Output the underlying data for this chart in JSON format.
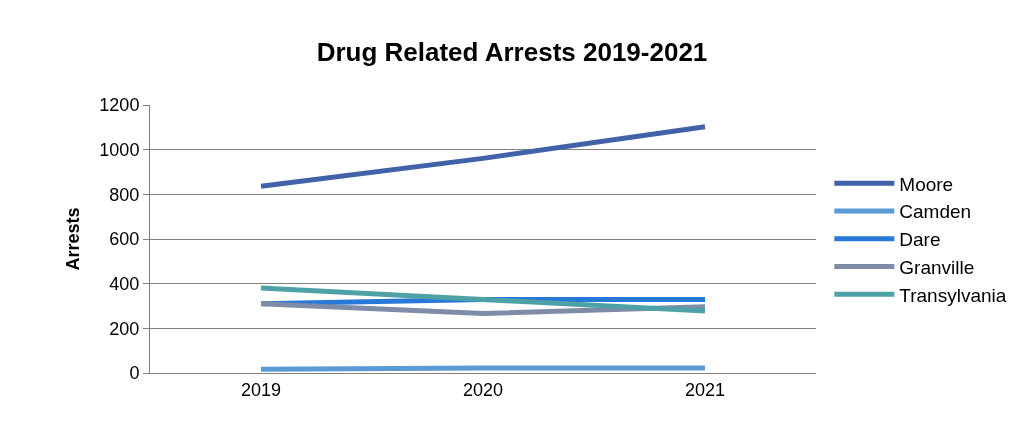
{
  "chart_data": {
    "type": "line",
    "title": "Drug Related Arrests 2019-2021",
    "ylabel": "Arrests",
    "categories": [
      "2019",
      "2020",
      "2021"
    ],
    "series": [
      {
        "name": "Moore",
        "color": "#4161a9",
        "values": [
          836,
          961,
          1103
        ]
      },
      {
        "name": "Camden",
        "color": "#5b9bd5",
        "values": [
          17,
          22,
          22
        ]
      },
      {
        "name": "Dare",
        "color": "#2878d8",
        "values": [
          310,
          329,
          329
        ]
      },
      {
        "name": "Granville",
        "color": "#7e8ca8",
        "values": [
          310,
          266,
          297
        ]
      },
      {
        "name": "Transylvania",
        "color": "#4fa1a8",
        "values": [
          381,
          329,
          278
        ]
      }
    ],
    "ylim": [
      0,
      1200
    ],
    "yticks": [
      0,
      200,
      400,
      600,
      800,
      1000,
      1200
    ],
    "grid": "y",
    "legend": "right",
    "marker": "none",
    "line_style": "solid"
  }
}
